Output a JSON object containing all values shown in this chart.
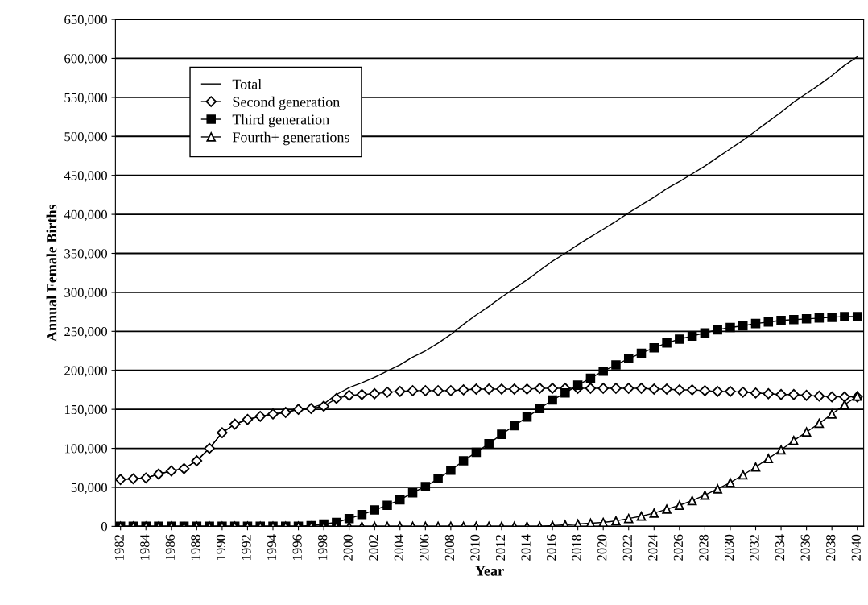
{
  "chart_data": {
    "type": "line",
    "xlabel": "Year",
    "ylabel": "Annual Female Births",
    "x": [
      1982,
      1983,
      1984,
      1985,
      1986,
      1987,
      1988,
      1989,
      1990,
      1991,
      1992,
      1993,
      1994,
      1995,
      1996,
      1997,
      1998,
      1999,
      2000,
      2001,
      2002,
      2003,
      2004,
      2005,
      2006,
      2007,
      2008,
      2009,
      2010,
      2011,
      2012,
      2013,
      2014,
      2015,
      2016,
      2017,
      2018,
      2019,
      2020,
      2021,
      2022,
      2023,
      2024,
      2025,
      2026,
      2027,
      2028,
      2029,
      2030,
      2031,
      2032,
      2033,
      2034,
      2035,
      2036,
      2037,
      2038,
      2039,
      2040
    ],
    "series": [
      {
        "name": "Total",
        "color": "#000000",
        "marker": "none",
        "values": [
          60000,
          61000,
          62000,
          67000,
          71000,
          74000,
          84000,
          100000,
          120000,
          131000,
          137000,
          141000,
          144000,
          146000,
          150000,
          152000,
          157000,
          169000,
          178000,
          184000,
          191000,
          199000,
          207000,
          217000,
          225000,
          235000,
          246000,
          259000,
          271000,
          282000,
          294000,
          305000,
          316000,
          328000,
          340000,
          350000,
          361000,
          371000,
          381000,
          391000,
          402000,
          412000,
          422000,
          433000,
          442000,
          452000,
          462000,
          473000,
          484000,
          495000,
          507000,
          519000,
          531000,
          544000,
          555000,
          566000,
          578000,
          591000,
          602000
        ]
      },
      {
        "name": "Second generation",
        "color": "#000000",
        "marker": "diamond",
        "values": [
          60000,
          61000,
          62000,
          67000,
          71000,
          74000,
          84000,
          100000,
          120000,
          131000,
          137000,
          141000,
          144000,
          146000,
          150000,
          151000,
          154000,
          164000,
          168000,
          169000,
          170000,
          172000,
          173000,
          174000,
          174000,
          174000,
          174000,
          175000,
          176000,
          176000,
          176000,
          176000,
          176000,
          177000,
          177000,
          177000,
          177000,
          177000,
          177000,
          177000,
          177000,
          177000,
          176000,
          176000,
          175000,
          175000,
          174000,
          173000,
          173000,
          172000,
          171000,
          170000,
          169000,
          169000,
          168000,
          167000,
          166000,
          166000,
          166000
        ]
      },
      {
        "name": "Third generation",
        "color": "#000000",
        "marker": "square",
        "values": [
          0,
          0,
          0,
          0,
          0,
          0,
          0,
          0,
          0,
          0,
          0,
          0,
          0,
          0,
          0,
          1000,
          3000,
          5000,
          10000,
          15000,
          21000,
          27000,
          34000,
          43000,
          51000,
          61000,
          72000,
          84000,
          95000,
          106000,
          118000,
          129000,
          140000,
          151000,
          162000,
          171000,
          181000,
          190000,
          199000,
          207000,
          215000,
          222000,
          229000,
          235000,
          240000,
          244000,
          248000,
          252000,
          255000,
          257000,
          260000,
          262000,
          264000,
          265000,
          266000,
          267000,
          268000,
          269000,
          269000
        ]
      },
      {
        "name": "Fourth+ generations",
        "color": "#000000",
        "marker": "triangle",
        "values": [
          0,
          0,
          0,
          0,
          0,
          0,
          0,
          0,
          0,
          0,
          0,
          0,
          0,
          0,
          0,
          0,
          0,
          0,
          0,
          0,
          0,
          0,
          0,
          0,
          0,
          0,
          0,
          0,
          0,
          0,
          0,
          0,
          0,
          0,
          1000,
          2000,
          3000,
          4000,
          5000,
          7000,
          10000,
          13000,
          17000,
          22000,
          27000,
          33000,
          40000,
          48000,
          56000,
          66000,
          76000,
          87000,
          98000,
          110000,
          121000,
          132000,
          144000,
          156000,
          167000
        ]
      }
    ],
    "xlim": [
      1981.6,
      2040.5
    ],
    "xticks": [
      1982,
      1984,
      1986,
      1988,
      1990,
      1992,
      1994,
      1996,
      1998,
      2000,
      2002,
      2004,
      2006,
      2008,
      2010,
      2012,
      2014,
      2016,
      2018,
      2020,
      2022,
      2024,
      2026,
      2028,
      2030,
      2032,
      2034,
      2036,
      2038,
      2040
    ],
    "ylim": [
      0,
      650000
    ],
    "yticks": [
      {
        "value": 0,
        "label": "0"
      },
      {
        "value": 50000,
        "label": "50,000"
      },
      {
        "value": 100000,
        "label": "100,000"
      },
      {
        "value": 150000,
        "label": "150,000"
      },
      {
        "value": 200000,
        "label": "200,000"
      },
      {
        "value": 250000,
        "label": "250,000"
      },
      {
        "value": 300000,
        "label": "300,000"
      },
      {
        "value": 350000,
        "label": "350,000"
      },
      {
        "value": 400000,
        "label": "400,000"
      },
      {
        "value": 450000,
        "label": "450,000"
      },
      {
        "value": 500000,
        "label": "500,000"
      },
      {
        "value": 550000,
        "label": "550,000"
      },
      {
        "value": 600000,
        "label": "600,000"
      },
      {
        "value": 650000,
        "label": "650,000"
      }
    ],
    "grid": "y",
    "legend": "top left",
    "line_style": "solid"
  }
}
